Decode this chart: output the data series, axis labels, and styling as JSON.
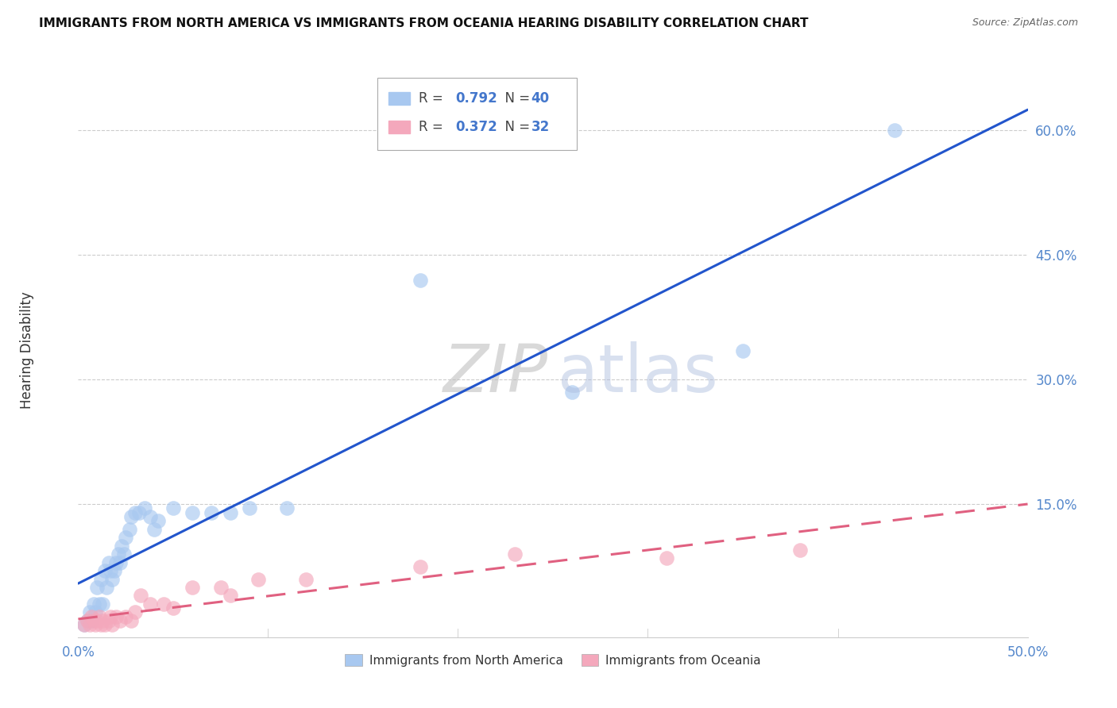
{
  "title": "IMMIGRANTS FROM NORTH AMERICA VS IMMIGRANTS FROM OCEANIA HEARING DISABILITY CORRELATION CHART",
  "source": "Source: ZipAtlas.com",
  "ylabel": "Hearing Disability",
  "xlim": [
    0.0,
    0.5
  ],
  "ylim": [
    -0.01,
    0.68
  ],
  "xtick_vals": [
    0.0,
    0.1,
    0.2,
    0.3,
    0.4,
    0.5
  ],
  "xtick_labels": [
    "0.0%",
    "",
    "",
    "",
    "",
    "50.0%"
  ],
  "ytick_vals": [
    0.15,
    0.3,
    0.45,
    0.6
  ],
  "ytick_labels": [
    "15.0%",
    "30.0%",
    "45.0%",
    "60.0%"
  ],
  "R1": "0.792",
  "N1": "40",
  "R2": "0.372",
  "N2": "32",
  "color1": "#A8C8F0",
  "color2": "#F4A8BC",
  "line_color1": "#2255CC",
  "line_color2": "#E06080",
  "background_color": "#FFFFFF",
  "north_america_x": [
    0.003,
    0.005,
    0.006,
    0.007,
    0.008,
    0.009,
    0.01,
    0.011,
    0.012,
    0.013,
    0.014,
    0.015,
    0.016,
    0.017,
    0.018,
    0.019,
    0.02,
    0.021,
    0.022,
    0.023,
    0.024,
    0.025,
    0.027,
    0.028,
    0.03,
    0.032,
    0.035,
    0.038,
    0.04,
    0.042,
    0.05,
    0.06,
    0.07,
    0.08,
    0.09,
    0.11,
    0.18,
    0.26,
    0.35,
    0.43
  ],
  "north_america_y": [
    0.005,
    0.01,
    0.02,
    0.01,
    0.03,
    0.02,
    0.05,
    0.03,
    0.06,
    0.03,
    0.07,
    0.05,
    0.08,
    0.07,
    0.06,
    0.07,
    0.08,
    0.09,
    0.08,
    0.1,
    0.09,
    0.11,
    0.12,
    0.135,
    0.14,
    0.14,
    0.145,
    0.135,
    0.12,
    0.13,
    0.145,
    0.14,
    0.14,
    0.14,
    0.145,
    0.145,
    0.42,
    0.285,
    0.335,
    0.6
  ],
  "oceania_x": [
    0.003,
    0.005,
    0.006,
    0.007,
    0.008,
    0.009,
    0.01,
    0.011,
    0.012,
    0.013,
    0.014,
    0.016,
    0.017,
    0.018,
    0.02,
    0.022,
    0.025,
    0.028,
    0.03,
    0.033,
    0.038,
    0.045,
    0.05,
    0.06,
    0.075,
    0.08,
    0.095,
    0.12,
    0.18,
    0.23,
    0.31,
    0.38
  ],
  "oceania_y": [
    0.005,
    0.01,
    0.005,
    0.015,
    0.01,
    0.005,
    0.01,
    0.015,
    0.005,
    0.01,
    0.005,
    0.01,
    0.015,
    0.005,
    0.015,
    0.01,
    0.015,
    0.01,
    0.02,
    0.04,
    0.03,
    0.03,
    0.025,
    0.05,
    0.05,
    0.04,
    0.06,
    0.06,
    0.075,
    0.09,
    0.085,
    0.095
  ],
  "legend_label1": "Immigrants from North America",
  "legend_label2": "Immigrants from Oceania"
}
